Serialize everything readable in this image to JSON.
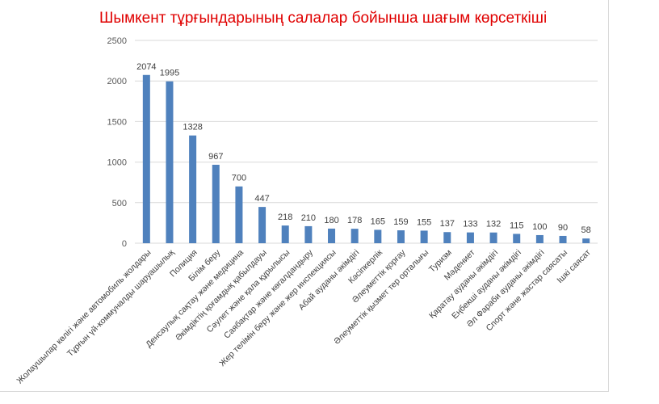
{
  "chart_data": {
    "type": "bar",
    "title": "Шымкент тұрғындарының салалар бойынша шағым көрсеткіші",
    "title_color": "#e00000",
    "bar_color": "#4f81bd",
    "grid": true,
    "legend": "none",
    "ylim": [
      0,
      2500
    ],
    "yticks": [
      "0",
      "500",
      "1000",
      "1500",
      "2000",
      "2500"
    ],
    "categories": [
      "Жолаушылар көлігі және автомобиль жолдары",
      "Тұрғын үй-коммуналды шаруашылық",
      "Полиция",
      "Білім беру",
      "Денсаулық сақтау және медицина",
      "Әкімдіктің қоғамдық қабылдауы",
      "Сәулет және қала құрылысы",
      "Саябақтар және көгалдандыру",
      "Жер телімін беру және жер инспекциясы",
      "Абай ауданы әкімдігі",
      "Кәсіпкерлік",
      "Әлеуметтік қорғау",
      "Әлеуметтік қызмет тер орталығы",
      "Туризм",
      "Мәдениет",
      "Қаратау ауданы әкімдігі",
      "Еңбекші ауданы әкімдігі",
      "Әл Фараби ауданы әкімдігі",
      "Спорт және жастар саясаты",
      "Ішкі саясат"
    ],
    "values": [
      2074,
      1995,
      1328,
      967,
      700,
      447,
      218,
      210,
      180,
      178,
      165,
      159,
      155,
      137,
      133,
      132,
      115,
      100,
      90,
      58
    ]
  }
}
